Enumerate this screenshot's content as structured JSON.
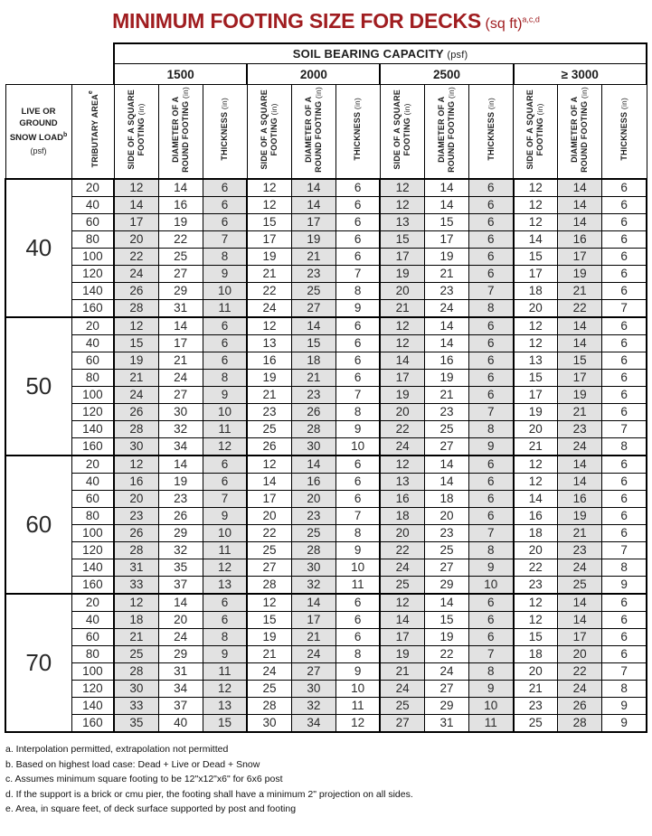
{
  "title": {
    "text": "MINIMUM FOOTING SIZE FOR DECKS",
    "unit": "(sq ft)",
    "sup": "a,c,d"
  },
  "colors": {
    "title_red": "#A01D20",
    "shade_grey": "#E2E2E2"
  },
  "table": {
    "soil_header": {
      "label": "SOIL BEARING CAPACITY",
      "unit": "(psf)"
    },
    "capacities": [
      "1500",
      "2000",
      "2500",
      "≥ 3000"
    ],
    "snow_load_header": {
      "label": "LIVE OR\nGROUND\nSNOW LOAD",
      "sup": "b",
      "unit": "(psf)"
    },
    "tributary_header": {
      "label": "TRIBUTARY AREA",
      "sup": "e"
    },
    "sub_headers": [
      {
        "key": "square-footing",
        "label": "SIDE OF A SQUARE\nFOOTING",
        "unit": "(in)"
      },
      {
        "key": "round-footing",
        "label": "DIAMETER OF A\nROUND FOOTING",
        "unit": "(in)"
      },
      {
        "key": "thickness",
        "label": "THICKNESS",
        "unit": "(in)"
      }
    ],
    "groups": [
      {
        "load": "40",
        "rows": [
          {
            "area": "20",
            "v": [
              12,
              14,
              6,
              12,
              14,
              6,
              12,
              14,
              6,
              12,
              14,
              6
            ]
          },
          {
            "area": "40",
            "v": [
              14,
              16,
              6,
              12,
              14,
              6,
              12,
              14,
              6,
              12,
              14,
              6
            ]
          },
          {
            "area": "60",
            "v": [
              17,
              19,
              6,
              15,
              17,
              6,
              13,
              15,
              6,
              12,
              14,
              6
            ]
          },
          {
            "area": "80",
            "v": [
              20,
              22,
              7,
              17,
              19,
              6,
              15,
              17,
              6,
              14,
              16,
              6
            ]
          },
          {
            "area": "100",
            "v": [
              22,
              25,
              8,
              19,
              21,
              6,
              17,
              19,
              6,
              15,
              17,
              6
            ]
          },
          {
            "area": "120",
            "v": [
              24,
              27,
              9,
              21,
              23,
              7,
              19,
              21,
              6,
              17,
              19,
              6
            ]
          },
          {
            "area": "140",
            "v": [
              26,
              29,
              10,
              22,
              25,
              8,
              20,
              23,
              7,
              18,
              21,
              6
            ]
          },
          {
            "area": "160",
            "v": [
              28,
              31,
              11,
              24,
              27,
              9,
              21,
              24,
              8,
              20,
              22,
              7
            ]
          }
        ]
      },
      {
        "load": "50",
        "rows": [
          {
            "area": "20",
            "v": [
              12,
              14,
              6,
              12,
              14,
              6,
              12,
              14,
              6,
              12,
              14,
              6
            ]
          },
          {
            "area": "40",
            "v": [
              15,
              17,
              6,
              13,
              15,
              6,
              12,
              14,
              6,
              12,
              14,
              6
            ]
          },
          {
            "area": "60",
            "v": [
              19,
              21,
              6,
              16,
              18,
              6,
              14,
              16,
              6,
              13,
              15,
              6
            ]
          },
          {
            "area": "80",
            "v": [
              21,
              24,
              8,
              19,
              21,
              6,
              17,
              19,
              6,
              15,
              17,
              6
            ]
          },
          {
            "area": "100",
            "v": [
              24,
              27,
              9,
              21,
              23,
              7,
              19,
              21,
              6,
              17,
              19,
              6
            ]
          },
          {
            "area": "120",
            "v": [
              26,
              30,
              10,
              23,
              26,
              8,
              20,
              23,
              7,
              19,
              21,
              6
            ]
          },
          {
            "area": "140",
            "v": [
              28,
              32,
              11,
              25,
              28,
              9,
              22,
              25,
              8,
              20,
              23,
              7
            ]
          },
          {
            "area": "160",
            "v": [
              30,
              34,
              12,
              26,
              30,
              10,
              24,
              27,
              9,
              21,
              24,
              8
            ]
          }
        ]
      },
      {
        "load": "60",
        "rows": [
          {
            "area": "20",
            "v": [
              12,
              14,
              6,
              12,
              14,
              6,
              12,
              14,
              6,
              12,
              14,
              6
            ]
          },
          {
            "area": "40",
            "v": [
              16,
              19,
              6,
              14,
              16,
              6,
              13,
              14,
              6,
              12,
              14,
              6
            ]
          },
          {
            "area": "60",
            "v": [
              20,
              23,
              7,
              17,
              20,
              6,
              16,
              18,
              6,
              14,
              16,
              6
            ]
          },
          {
            "area": "80",
            "v": [
              23,
              26,
              9,
              20,
              23,
              7,
              18,
              20,
              6,
              16,
              19,
              6
            ]
          },
          {
            "area": "100",
            "v": [
              26,
              29,
              10,
              22,
              25,
              8,
              20,
              23,
              7,
              18,
              21,
              6
            ]
          },
          {
            "area": "120",
            "v": [
              28,
              32,
              11,
              25,
              28,
              9,
              22,
              25,
              8,
              20,
              23,
              7
            ]
          },
          {
            "area": "140",
            "v": [
              31,
              35,
              12,
              27,
              30,
              10,
              24,
              27,
              9,
              22,
              24,
              8
            ]
          },
          {
            "area": "160",
            "v": [
              33,
              37,
              13,
              28,
              32,
              11,
              25,
              29,
              10,
              23,
              25,
              9
            ]
          }
        ]
      },
      {
        "load": "70",
        "rows": [
          {
            "area": "20",
            "v": [
              12,
              14,
              6,
              12,
              14,
              6,
              12,
              14,
              6,
              12,
              14,
              6
            ]
          },
          {
            "area": "40",
            "v": [
              18,
              20,
              6,
              15,
              17,
              6,
              14,
              15,
              6,
              12,
              14,
              6
            ]
          },
          {
            "area": "60",
            "v": [
              21,
              24,
              8,
              19,
              21,
              6,
              17,
              19,
              6,
              15,
              17,
              6
            ]
          },
          {
            "area": "80",
            "v": [
              25,
              29,
              9,
              21,
              24,
              8,
              19,
              22,
              7,
              18,
              20,
              6
            ]
          },
          {
            "area": "100",
            "v": [
              28,
              31,
              11,
              24,
              27,
              9,
              21,
              24,
              8,
              20,
              22,
              7
            ]
          },
          {
            "area": "120",
            "v": [
              30,
              34,
              12,
              25,
              30,
              10,
              24,
              27,
              9,
              21,
              24,
              8
            ]
          },
          {
            "area": "140",
            "v": [
              33,
              37,
              13,
              28,
              32,
              11,
              25,
              29,
              10,
              23,
              26,
              9
            ]
          },
          {
            "area": "160",
            "v": [
              35,
              40,
              15,
              30,
              34,
              12,
              27,
              31,
              11,
              25,
              28,
              9
            ]
          }
        ]
      }
    ],
    "footnotes": [
      "a. Interpolation permitted, extrapolation not permitted",
      "b. Based on highest load case: Dead + Live or Dead + Snow",
      "c. Assumes minimum square footing to be 12\"x12\"x6\" for 6x6 post",
      "d. If the support is a brick or cmu pier, the footing shall have a minimum 2\" projection on all sides.",
      "e. Area, in square feet, of deck surface supported by post and footing"
    ]
  }
}
